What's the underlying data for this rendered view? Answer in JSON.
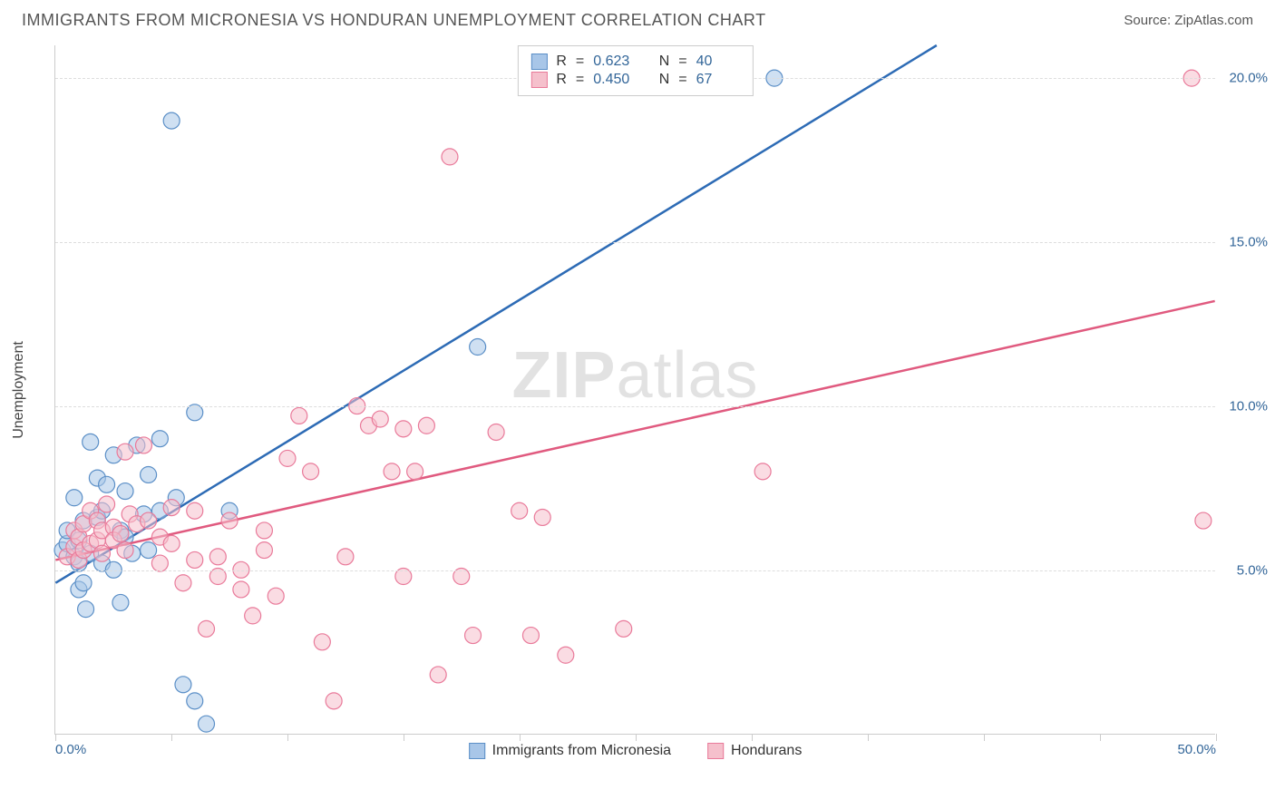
{
  "header": {
    "title": "IMMIGRANTS FROM MICRONESIA VS HONDURAN UNEMPLOYMENT CORRELATION CHART",
    "source_prefix": "Source: ",
    "source_name": "ZipAtlas.com"
  },
  "watermark": {
    "zip": "ZIP",
    "atlas": "atlas"
  },
  "chart": {
    "type": "scatter",
    "ylabel": "Unemployment",
    "xlim": [
      0,
      50
    ],
    "ylim": [
      0,
      21
    ],
    "yticks": [
      5,
      10,
      15,
      20
    ],
    "ytick_labels": [
      "5.0%",
      "10.0%",
      "15.0%",
      "20.0%"
    ],
    "xticks": [
      0,
      5,
      10,
      15,
      20,
      25,
      30,
      35,
      40,
      45,
      50
    ],
    "xtick_labels_shown": {
      "0": "0.0%",
      "50": "50.0%"
    },
    "xtick_label_color": "#336699",
    "ytick_label_color": "#336699",
    "grid_color": "#dddddd",
    "background_color": "#ffffff",
    "marker_radius": 9,
    "marker_opacity": 0.55,
    "line_width": 2.5,
    "series": [
      {
        "name": "Immigrants from Micronesia",
        "color_fill": "#a8c6e8",
        "color_stroke": "#5b8fc7",
        "line_color": "#2d6bb5",
        "R": "0.623",
        "N": "40",
        "trend": {
          "x1": 0,
          "y1": 4.6,
          "x2": 38,
          "y2": 21
        },
        "points": [
          [
            0.3,
            5.6
          ],
          [
            0.5,
            5.8
          ],
          [
            0.5,
            6.2
          ],
          [
            0.8,
            5.4
          ],
          [
            0.8,
            7.2
          ],
          [
            1.0,
            4.4
          ],
          [
            1.0,
            5.9
          ],
          [
            1.2,
            6.5
          ],
          [
            1.2,
            4.6
          ],
          [
            1.3,
            3.8
          ],
          [
            1.5,
            5.5
          ],
          [
            1.5,
            8.9
          ],
          [
            1.8,
            6.6
          ],
          [
            1.8,
            7.8
          ],
          [
            2.0,
            5.2
          ],
          [
            2.0,
            6.8
          ],
          [
            2.2,
            7.6
          ],
          [
            2.5,
            5.0
          ],
          [
            2.5,
            8.5
          ],
          [
            2.8,
            4.0
          ],
          [
            2.8,
            6.2
          ],
          [
            3.0,
            7.4
          ],
          [
            3.0,
            6.0
          ],
          [
            3.3,
            5.5
          ],
          [
            3.5,
            8.8
          ],
          [
            3.8,
            6.7
          ],
          [
            4.0,
            5.6
          ],
          [
            4.0,
            7.9
          ],
          [
            4.5,
            6.8
          ],
          [
            4.5,
            9.0
          ],
          [
            5.0,
            18.7
          ],
          [
            5.2,
            7.2
          ],
          [
            5.5,
            1.5
          ],
          [
            6.0,
            1.0
          ],
          [
            6.0,
            9.8
          ],
          [
            6.5,
            0.3
          ],
          [
            7.5,
            6.8
          ],
          [
            18.2,
            11.8
          ],
          [
            31.0,
            20.0
          ],
          [
            1.0,
            5.2
          ]
        ]
      },
      {
        "name": "Hondurans",
        "color_fill": "#f5c0cc",
        "color_stroke": "#e97a9a",
        "line_color": "#e05a7f",
        "R": "0.450",
        "N": "67",
        "trend": {
          "x1": 0,
          "y1": 5.3,
          "x2": 50,
          "y2": 13.2
        },
        "points": [
          [
            0.5,
            5.4
          ],
          [
            0.8,
            5.7
          ],
          [
            0.8,
            6.2
          ],
          [
            1.0,
            6.0
          ],
          [
            1.0,
            5.3
          ],
          [
            1.2,
            6.4
          ],
          [
            1.2,
            5.6
          ],
          [
            1.5,
            6.8
          ],
          [
            1.5,
            5.8
          ],
          [
            1.8,
            6.5
          ],
          [
            1.8,
            5.9
          ],
          [
            2.0,
            6.2
          ],
          [
            2.0,
            5.5
          ],
          [
            2.2,
            7.0
          ],
          [
            2.5,
            6.3
          ],
          [
            2.5,
            5.9
          ],
          [
            2.8,
            6.1
          ],
          [
            3.0,
            5.6
          ],
          [
            3.0,
            8.6
          ],
          [
            3.2,
            6.7
          ],
          [
            3.5,
            6.4
          ],
          [
            3.8,
            8.8
          ],
          [
            4.0,
            6.5
          ],
          [
            4.5,
            5.2
          ],
          [
            4.5,
            6.0
          ],
          [
            5.0,
            5.8
          ],
          [
            5.0,
            6.9
          ],
          [
            5.5,
            4.6
          ],
          [
            6.0,
            5.3
          ],
          [
            6.0,
            6.8
          ],
          [
            6.5,
            3.2
          ],
          [
            7.0,
            4.8
          ],
          [
            7.0,
            5.4
          ],
          [
            7.5,
            6.5
          ],
          [
            8.0,
            4.4
          ],
          [
            8.0,
            5.0
          ],
          [
            8.5,
            3.6
          ],
          [
            9.0,
            5.6
          ],
          [
            9.0,
            6.2
          ],
          [
            9.5,
            4.2
          ],
          [
            10.0,
            8.4
          ],
          [
            10.5,
            9.7
          ],
          [
            11.0,
            8.0
          ],
          [
            11.5,
            2.8
          ],
          [
            12.0,
            1.0
          ],
          [
            12.5,
            5.4
          ],
          [
            13.0,
            10.0
          ],
          [
            13.5,
            9.4
          ],
          [
            14.0,
            9.6
          ],
          [
            14.5,
            8.0
          ],
          [
            15.0,
            4.8
          ],
          [
            15.0,
            9.3
          ],
          [
            15.5,
            8.0
          ],
          [
            16.0,
            9.4
          ],
          [
            16.5,
            1.8
          ],
          [
            17.0,
            17.6
          ],
          [
            17.5,
            4.8
          ],
          [
            18.0,
            3.0
          ],
          [
            19.0,
            9.2
          ],
          [
            20.0,
            6.8
          ],
          [
            20.5,
            3.0
          ],
          [
            21.0,
            6.6
          ],
          [
            22.0,
            2.4
          ],
          [
            24.5,
            3.2
          ],
          [
            30.5,
            8.0
          ],
          [
            49.0,
            20.0
          ],
          [
            49.5,
            6.5
          ]
        ]
      }
    ],
    "stats_box": {
      "r_label": "R",
      "n_label": "N",
      "equals": "="
    },
    "legend": {
      "items": [
        "Immigrants from Micronesia",
        "Hondurans"
      ]
    }
  }
}
